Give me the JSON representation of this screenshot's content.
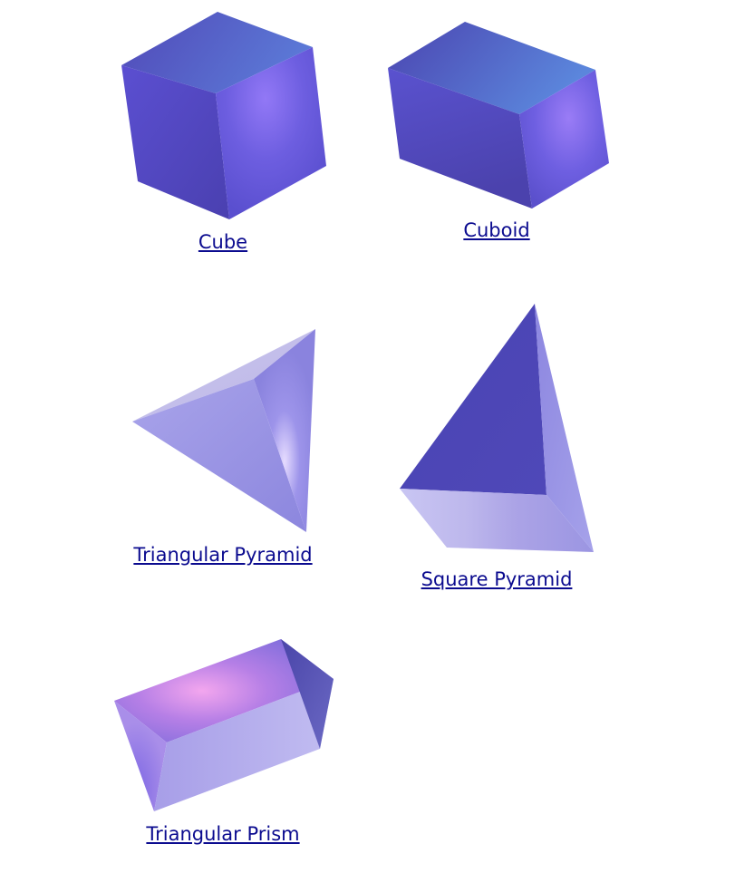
{
  "shapes": [
    {
      "id": "cube",
      "label": "Cube"
    },
    {
      "id": "cuboid",
      "label": "Cuboid"
    },
    {
      "id": "triangular-pyramid",
      "label": "Triangular Pyramid"
    },
    {
      "id": "square-pyramid",
      "label": "Square Pyramid"
    },
    {
      "id": "triangular-prism",
      "label": "Triangular Prism"
    }
  ],
  "colors": {
    "link": "#0b0b8f",
    "solid_dark": "#3f3fa6",
    "solid_mid": "#6f62e0",
    "solid_light": "#b7b3ee",
    "highlight_pink": "#f0a0f0",
    "highlight_yellow": "#e9e3b8"
  }
}
